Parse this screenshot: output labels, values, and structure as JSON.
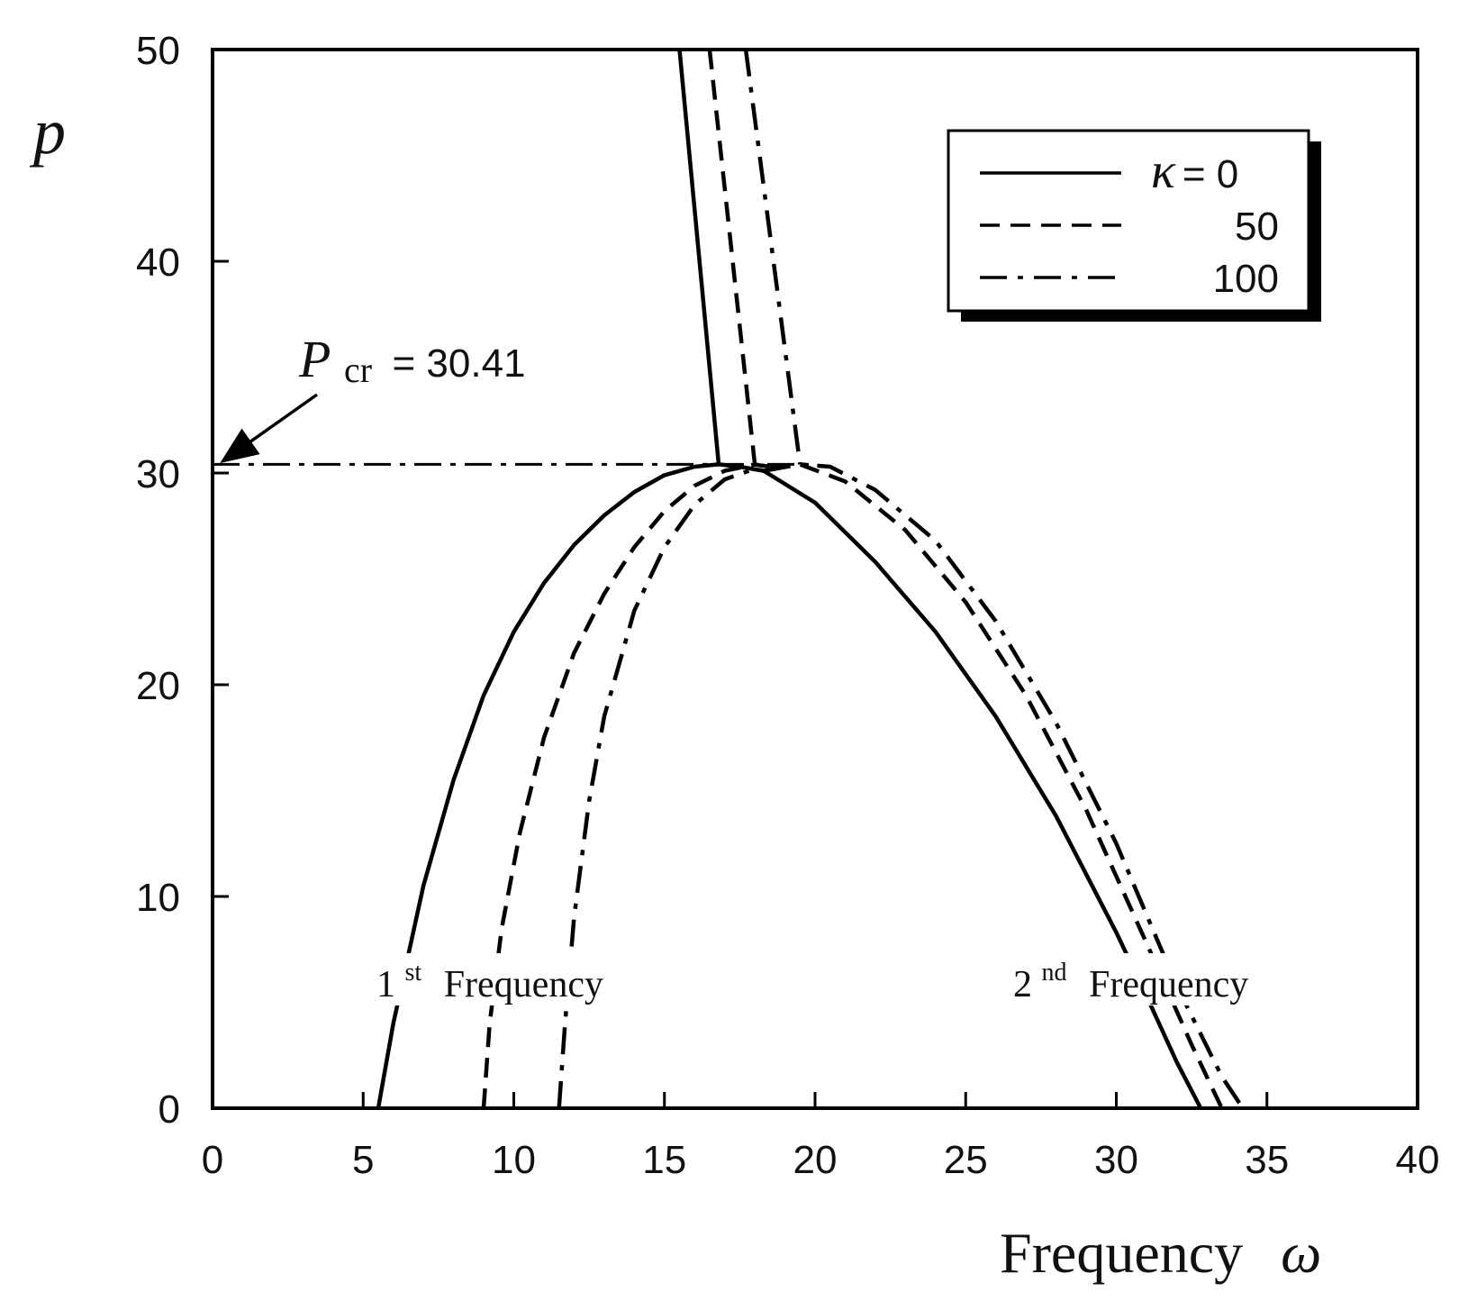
{
  "chart_data": {
    "type": "line",
    "title": "",
    "xlabel": "Frequency",
    "xlabel_symbol": "ω",
    "ylabel": "p",
    "xlim": [
      0,
      40
    ],
    "ylim": [
      0,
      50
    ],
    "x_ticks": [
      "0",
      "5",
      "10",
      "15",
      "20",
      "25",
      "30",
      "35",
      "40"
    ],
    "y_ticks": [
      "0",
      "10",
      "20",
      "30",
      "40",
      "50"
    ],
    "grid": false,
    "legend": {
      "placement": "top-right",
      "symbol": "κ",
      "entries": [
        {
          "label": "= 0",
          "style": "solid"
        },
        {
          "label": "50",
          "style": "dashed"
        },
        {
          "label": "100",
          "style": "dash-dot"
        }
      ]
    },
    "series": [
      {
        "name": "κ = 0",
        "style": "solid",
        "branches": [
          {
            "x": [
              5.5,
              6.0,
              7.0,
              8.0,
              9.0,
              10.0,
              11.0,
              12.0,
              13.0,
              14.0,
              15.0,
              16.0,
              16.8,
              17.5,
              18.3
            ],
            "y": [
              0,
              4,
              10.5,
              15.5,
              19.5,
              22.5,
              24.8,
              26.6,
              28.0,
              29.1,
              29.9,
              30.3,
              30.41,
              30.3,
              30.1
            ]
          },
          {
            "x": [
              18.3,
              20,
              22,
              24,
              26,
              28,
              30,
              31,
              32,
              32.8
            ],
            "y": [
              30.1,
              28.6,
              25.8,
              22.5,
              18.5,
              13.8,
              8.3,
              5.3,
              2.2,
              0
            ]
          },
          {
            "x": [
              15.5,
              16.8
            ],
            "y": [
              50,
              30.41
            ]
          }
        ]
      },
      {
        "name": "50",
        "style": "dashed",
        "branches": [
          {
            "x": [
              9.0,
              9.2,
              9.6,
              10.2,
              11.0,
              12.0,
              13.0,
              14.0,
              15.0,
              16.0,
              17.0,
              18.0,
              18.5
            ],
            "y": [
              0,
              4,
              8.5,
              13,
              17.5,
              21.5,
              24.3,
              26.5,
              28.2,
              29.4,
              30.1,
              30.4,
              30.3
            ]
          },
          {
            "x": [
              18.5,
              19.5,
              21,
              23,
              25,
              27,
              29,
              31,
              32.5,
              33.5
            ],
            "y": [
              30.3,
              30.41,
              29.6,
              27.3,
              23.9,
              19.5,
              14.1,
              7.8,
              3.0,
              0
            ]
          },
          {
            "x": [
              16.5,
              18.0
            ],
            "y": [
              50,
              30.41
            ]
          }
        ]
      },
      {
        "name": "100",
        "style": "dash-dot",
        "branches": [
          {
            "x": [
              11.5,
              11.7,
              12.0,
              12.5,
              13.0,
              14.0,
              15.0,
              16.0,
              17.0,
              18.0,
              18.3
            ],
            "y": [
              0,
              4,
              9,
              14.5,
              18.5,
              23.5,
              26.5,
              28.5,
              29.7,
              30.2,
              30.1
            ]
          },
          {
            "x": [
              18.3,
              19.5,
              20.5,
              22,
              24,
              26,
              28,
              30,
              32,
              33.5,
              34.2
            ],
            "y": [
              30.1,
              30.41,
              30.3,
              29.2,
              26.8,
              23.0,
              18.2,
              12.5,
              5.8,
              1.5,
              0
            ]
          },
          {
            "x": [
              17.7,
              19.5
            ],
            "y": [
              50,
              30.41
            ]
          }
        ]
      }
    ],
    "annotations": {
      "pcr_symbol": "P",
      "pcr_subscript": "cr",
      "pcr_value": "= 30.41",
      "pcr_level": 30.41,
      "first_freq_num": "1",
      "first_freq_sup": "st",
      "first_freq_word": "Frequency",
      "second_freq_num": "2",
      "second_freq_sup": "nd",
      "second_freq_word": "Frequency"
    },
    "colors": {
      "line": "#000000",
      "background": "#ffffff"
    }
  }
}
